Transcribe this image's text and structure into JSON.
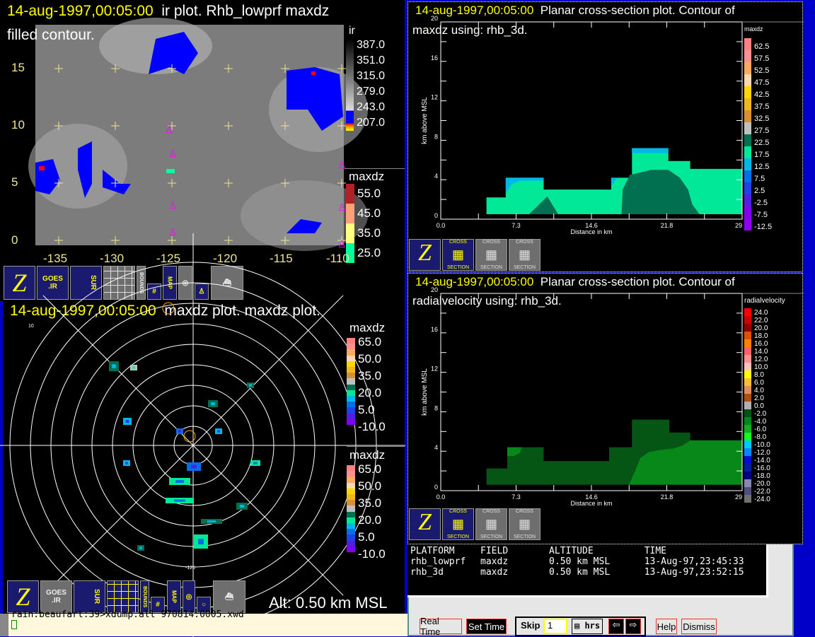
{
  "ir_panel": {
    "timestamp": "14-aug-1997,00:05:00",
    "title": "ir plot.  Rhb_lowprf maxdz",
    "subtitle": "filled contour.",
    "y_ticks": [
      "15",
      "10",
      "5",
      "0"
    ],
    "x_ticks": [
      "-135",
      "-130",
      "-125",
      "-120",
      "-115",
      "-110"
    ],
    "ir_colorbar": {
      "label": "ir",
      "values": [
        "387.0",
        "351.0",
        "315.0",
        "279.0",
        "243.0",
        "207.0"
      ]
    },
    "maxdz_colorbar": {
      "label": "maxdz",
      "values": [
        "55.0",
        "45.0",
        "35.0",
        "25.0"
      ],
      "colors": [
        "#b22222",
        "#ffa07a",
        "#ffff80",
        "#00ff9f"
      ]
    }
  },
  "toolbar_top": {
    "icons": [
      "z-logo-icon",
      "goes-ir-icon",
      "sur-radar-icon",
      "grid-radar-icon",
      "bounds-icon",
      "grid-icon",
      "map-icon",
      "range-rings-icon",
      "buoy-icon",
      "ship-icon"
    ],
    "labels": {
      "goes": "GOES",
      "ir": ".IR",
      "sur": "SUR",
      "bounds": "BOUNDS",
      "map": "MAP"
    }
  },
  "radar_panel": {
    "timestamp": "14-aug-1997,00:05:00",
    "title": "maxdz plot.  maxdz plot.",
    "corner_label": "10",
    "bottom_label": "-125",
    "altitude": "Alt: 0.50 km MSL",
    "colorbar_upper": {
      "label": "maxdz",
      "values": [
        "65.0",
        "50.0",
        "35.0",
        "20.0",
        "5.0",
        "-10.0"
      ]
    },
    "colorbar_lower": {
      "label": "maxdz",
      "values": [
        "65.0",
        "50.0",
        "35.0",
        "20.0",
        "5.0",
        "-10.0"
      ]
    },
    "colors": [
      "#ff8080",
      "#ff9090",
      "#ffaa60",
      "#ffd8b0",
      "#ffd700",
      "#f0b820",
      "#d89030",
      "#c0c0c0",
      "#007050",
      "#00e898",
      "#00b8e8",
      "#0070e8",
      "#2040e8",
      "#5020e0",
      "#8000f0"
    ]
  },
  "xsec_maxdz": {
    "timestamp": "14-aug-1997,00:05:00",
    "title": "Planar cross-section plot.  Contour of",
    "subtitle": "maxdz using: rhb_3d.",
    "chart_data": {
      "type": "area",
      "xlabel": "Distance in km",
      "ylabel": "km above MSL",
      "xlim": [
        0,
        29
      ],
      "ylim": [
        0,
        20
      ],
      "x_ticks": [
        "0.0",
        "7.3",
        "14.6",
        "21.8",
        "29"
      ],
      "y_ticks": [
        "20",
        "16",
        "12",
        "8",
        "4",
        "0"
      ],
      "colorbar": {
        "label": "maxdz",
        "values": [
          "62.5",
          "57.5",
          "52.5",
          "47.5",
          "42.5",
          "37.5",
          "32.5",
          "27.5",
          "22.5",
          "17.5",
          "12.5",
          "7.5",
          "2.5",
          "-2.5",
          "-7.5",
          "-12.5"
        ],
        "colors": [
          "#ff8080",
          "#ff9090",
          "#ffaa60",
          "#ffd8b0",
          "#ffd700",
          "#f0b820",
          "#d89030",
          "#c0c0c0",
          "#007050",
          "#00e898",
          "#00b8e8",
          "#0070e8",
          "#2040e8",
          "#5020e0",
          "#8000f0",
          "#9000f0"
        ]
      },
      "regions": [
        {
          "value": "17.5",
          "color": "#00e898",
          "points": [
            [
              4.4,
              0.5
            ],
            [
              4.4,
              2.2
            ],
            [
              6.25,
              2.2
            ],
            [
              6.25,
              4.2
            ],
            [
              9.9,
              4.2
            ],
            [
              9.9,
              3.0
            ],
            [
              16.4,
              3.0
            ],
            [
              16.4,
              4.2
            ],
            [
              18.4,
              4.2
            ],
            [
              18.4,
              7.2
            ],
            [
              21.9,
              7.2
            ],
            [
              21.9,
              5.9
            ],
            [
              24.0,
              5.9
            ],
            [
              24.0,
              5.1
            ],
            [
              29,
              5.1
            ],
            [
              29,
              0.5
            ]
          ]
        },
        {
          "value": "12.5",
          "color": "#00b8e8",
          "points": [
            [
              6.25,
              4.2
            ],
            [
              9.9,
              4.2
            ],
            [
              9.9,
              3.9
            ],
            [
              7.6,
              3.9
            ],
            [
              6.8,
              3.5
            ],
            [
              6.25,
              2.6
            ]
          ]
        },
        {
          "value": "12.5",
          "color": "#00b8e8",
          "points": [
            [
              16.4,
              4.2
            ],
            [
              17.0,
              4.2
            ],
            [
              16.5,
              3.5
            ],
            [
              16.4,
              3.2
            ]
          ]
        },
        {
          "value": "12.5",
          "color": "#00b8e8",
          "points": [
            [
              18.4,
              7.2
            ],
            [
              21.9,
              7.2
            ],
            [
              21.9,
              6.7
            ],
            [
              18.4,
              6.7
            ]
          ]
        },
        {
          "value": "22.5",
          "color": "#007050",
          "points": [
            [
              8.5,
              0.5
            ],
            [
              10.25,
              2.3
            ],
            [
              11.3,
              0.5
            ]
          ]
        },
        {
          "value": "22.5",
          "color": "#007050",
          "points": [
            [
              17.4,
              0.5
            ],
            [
              17.5,
              3.0
            ],
            [
              18.2,
              4.5
            ],
            [
              19.5,
              4.8
            ],
            [
              20.2,
              5.0
            ],
            [
              21.9,
              5.0
            ],
            [
              23.0,
              4.2
            ],
            [
              23.8,
              3.0
            ],
            [
              24.2,
              1.5
            ],
            [
              24.9,
              0.5
            ]
          ]
        }
      ]
    }
  },
  "xsec_vel": {
    "timestamp": "14-aug-1997,00:05:00",
    "title": "Planar cross-section plot.  Contour of",
    "subtitle": "radialvelocity using: rhb_3d.",
    "chart_data": {
      "type": "area",
      "xlabel": "Distance in km",
      "ylabel": "km above MSL",
      "xlim": [
        0,
        29
      ],
      "ylim": [
        0,
        20
      ],
      "x_ticks": [
        "0.0",
        "7.3",
        "14.6",
        "21.8",
        "29"
      ],
      "y_ticks": [
        "20",
        "16",
        "12",
        "8",
        "4",
        "0"
      ],
      "colorbar": {
        "label": "radialvelocity",
        "values": [
          "24.0",
          "22.0",
          "20.0",
          "18.0",
          "16.0",
          "14.0",
          "12.0",
          "10.0",
          "8.0",
          "6.0",
          "4.0",
          "2.0",
          "0.0",
          "-2.0",
          "-4.0",
          "-6.0",
          "-8.0",
          "-10.0",
          "-12.0",
          "-14.0",
          "-16.0",
          "-18.0",
          "-20.0",
          "-22.0",
          "-24.0"
        ],
        "colors": [
          "#ff0000",
          "#d00000",
          "#900000",
          "#e05000",
          "#ff8000",
          "#ff6060",
          "#ff9090",
          "#ffc0c0",
          "#ffff00",
          "#ffc030",
          "#e09060",
          "#b05010",
          "#b0b0b0",
          "#005018",
          "#008820",
          "#10b020",
          "#10ff20",
          "#00c8ff",
          "#0088ff",
          "#0010d0",
          "#0020a0",
          "#000080",
          "#8888b0",
          "#505080",
          "#707070"
        ]
      },
      "regions": [
        {
          "value": "-2.0",
          "color": "#055515",
          "points": [
            [
              4.4,
              0.6
            ],
            [
              4.4,
              2.25
            ],
            [
              6.4,
              2.25
            ],
            [
              6.4,
              4.4
            ],
            [
              9.9,
              4.4
            ],
            [
              9.9,
              3.0
            ],
            [
              16.2,
              3.0
            ],
            [
              16.2,
              4.4
            ],
            [
              18.4,
              4.4
            ],
            [
              18.4,
              7.2
            ],
            [
              22.0,
              7.2
            ],
            [
              22.0,
              5.9
            ],
            [
              24.0,
              5.9
            ],
            [
              24.0,
              5.1
            ],
            [
              29,
              5.1
            ],
            [
              29,
              0.6
            ]
          ]
        },
        {
          "value": "-4.0",
          "color": "#088818",
          "points": [
            [
              6.4,
              4.4
            ],
            [
              7.8,
              4.4
            ],
            [
              7.6,
              3.8
            ],
            [
              7.0,
              3.5
            ],
            [
              6.4,
              3.5
            ]
          ]
        },
        {
          "value": "-4.0",
          "color": "#088818",
          "points": [
            [
              18.1,
              0.6
            ],
            [
              18.7,
              2.0
            ],
            [
              19.2,
              3.3
            ],
            [
              20.0,
              3.9
            ],
            [
              21.0,
              4.1
            ],
            [
              22.5,
              4.3
            ],
            [
              23.3,
              4.6
            ],
            [
              24.0,
              5.1
            ],
            [
              29,
              5.1
            ],
            [
              29,
              0.6
            ]
          ]
        }
      ]
    }
  },
  "status_table": {
    "headers": [
      "PLATFORM",
      "FIELD",
      "ALTITUDE",
      "TIME"
    ],
    "rows": [
      [
        "rhb_lowprf",
        "maxdz",
        "0.50 km MSL",
        "13-Aug-97,23:45:33"
      ],
      [
        "rhb_3d",
        "maxdz",
        "0.50 km MSL",
        "13-Aug-97,23:52:15"
      ]
    ]
  },
  "xsec_buttons": {
    "cross": "CROSS",
    "section": "SECTION"
  },
  "terminal": {
    "line": "rain:beaufart:39>xdump.all 970814.0005.xwd"
  },
  "controls": {
    "real_time": "Real Time",
    "set_time": "Set Time",
    "skip": "Skip",
    "skip_value": "1",
    "units": "hrs",
    "help": "Help",
    "dismiss": "Dismiss"
  }
}
